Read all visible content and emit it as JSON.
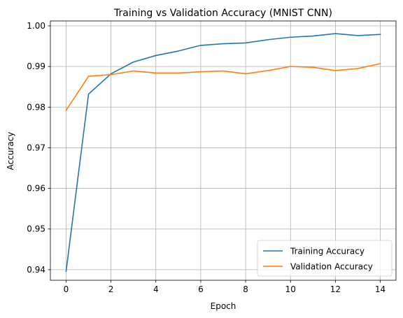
{
  "chart_data": {
    "type": "line",
    "title": "Training vs Validation Accuracy (MNIST CNN)",
    "xlabel": "Epoch",
    "ylabel": "Accuracy",
    "xlim": [
      -0.7,
      14.7
    ],
    "ylim": [
      0.9374,
      1.0012
    ],
    "xticks": [
      0,
      2,
      4,
      6,
      8,
      10,
      12,
      14
    ],
    "yticks": [
      0.94,
      0.95,
      0.96,
      0.97,
      0.98,
      0.99,
      1.0
    ],
    "ytick_labels": [
      "0.94",
      "0.95",
      "0.96",
      "0.97",
      "0.98",
      "0.99",
      "1.00"
    ],
    "grid": true,
    "legend_position": "lower-right",
    "x": [
      0,
      1,
      2,
      3,
      4,
      5,
      6,
      7,
      8,
      9,
      10,
      11,
      12,
      13,
      14
    ],
    "series": [
      {
        "name": "Training Accuracy",
        "color": "#1f77b4",
        "values": [
          0.9396,
          0.9832,
          0.9882,
          0.9911,
          0.9927,
          0.9938,
          0.9952,
          0.9956,
          0.9958,
          0.9966,
          0.9972,
          0.9975,
          0.9981,
          0.9976,
          0.9979
        ]
      },
      {
        "name": "Validation Accuracy",
        "color": "#ff7f0e",
        "values": [
          0.9792,
          0.9876,
          0.988,
          0.9889,
          0.9884,
          0.9884,
          0.9887,
          0.9889,
          0.9882,
          0.989,
          0.99,
          0.9898,
          0.989,
          0.9895,
          0.9907
        ]
      }
    ]
  }
}
